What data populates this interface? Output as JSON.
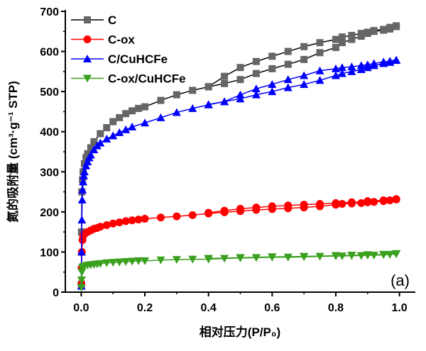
{
  "chart_data": {
    "type": "line",
    "xlabel": "相对压力(P/P₀)",
    "ylabel": "氮的吸附量 (cm³·g⁻¹ STP)",
    "xlim": [
      -0.05,
      1.05
    ],
    "ylim": [
      0,
      700
    ],
    "xticks": [
      "0.0",
      "0.2",
      "0.4",
      "0.6",
      "0.8",
      "1.0"
    ],
    "yticks": [
      "0",
      "100",
      "200",
      "300",
      "400",
      "500",
      "600",
      "700"
    ],
    "xtick_values": [
      0,
      0.2,
      0.4,
      0.6,
      0.8,
      1.0
    ],
    "ytick_values": [
      0,
      100,
      200,
      300,
      400,
      500,
      600,
      700
    ],
    "grid": false,
    "legend_position": "top-left",
    "annotation": "(a)",
    "series": [
      {
        "name": "C",
        "color": "#666666",
        "line_color": "#000000",
        "marker": "square",
        "adsorption": {
          "x": [
            0.0005,
            0.001,
            0.002,
            0.004,
            0.006,
            0.01,
            0.015,
            0.02,
            0.03,
            0.04,
            0.06,
            0.08,
            0.1,
            0.12,
            0.14,
            0.16,
            0.18,
            0.2,
            0.25,
            0.3,
            0.35,
            0.4,
            0.45,
            0.5,
            0.55,
            0.6,
            0.65,
            0.7,
            0.75,
            0.8,
            0.82,
            0.85,
            0.88,
            0.9,
            0.92,
            0.95,
            0.97,
            0.99
          ],
          "y": [
            20,
            150,
            250,
            280,
            300,
            320,
            335,
            345,
            360,
            375,
            395,
            410,
            425,
            435,
            445,
            452,
            458,
            462,
            478,
            492,
            503,
            512,
            520,
            530,
            545,
            557,
            568,
            580,
            597,
            610,
            622,
            630,
            638,
            645,
            650,
            653,
            656,
            662
          ]
        },
        "desorption": {
          "x": [
            0.99,
            0.97,
            0.95,
            0.92,
            0.9,
            0.88,
            0.85,
            0.82,
            0.8,
            0.75,
            0.7,
            0.65,
            0.6,
            0.55,
            0.5,
            0.45,
            0.4
          ],
          "y": [
            664,
            660,
            655,
            652,
            648,
            645,
            640,
            636,
            630,
            622,
            612,
            600,
            588,
            575,
            560,
            538,
            512
          ]
        }
      },
      {
        "name": "C-ox",
        "color": "#ff0000",
        "line_color": "#ff0000",
        "marker": "circle",
        "adsorption": {
          "x": [
            0.0005,
            0.001,
            0.002,
            0.004,
            0.006,
            0.01,
            0.02,
            0.03,
            0.04,
            0.05,
            0.06,
            0.08,
            0.1,
            0.12,
            0.14,
            0.16,
            0.18,
            0.2,
            0.25,
            0.3,
            0.35,
            0.4,
            0.45,
            0.5,
            0.55,
            0.6,
            0.65,
            0.7,
            0.75,
            0.8,
            0.82,
            0.85,
            0.88,
            0.9,
            0.92,
            0.95,
            0.97,
            0.99
          ],
          "y": [
            20,
            60,
            100,
            130,
            140,
            145,
            150,
            154,
            158,
            160,
            163,
            167,
            171,
            174,
            177,
            179,
            181,
            183,
            186,
            189,
            192,
            196,
            199,
            202,
            205,
            207,
            209,
            211,
            214,
            218,
            220,
            221,
            222,
            224,
            225,
            227,
            229,
            231
          ]
        },
        "desorption": {
          "x": [
            0.99,
            0.95,
            0.9,
            0.85,
            0.8,
            0.75,
            0.7,
            0.65,
            0.6,
            0.55,
            0.5,
            0.45,
            0.4
          ],
          "y": [
            232,
            229,
            227,
            224,
            222,
            220,
            218,
            216,
            214,
            211,
            208,
            203,
            198
          ]
        }
      },
      {
        "name": "C/CuHCFe",
        "color": "#0000ff",
        "line_color": "#0000ff",
        "marker": "triangle-up",
        "adsorption": {
          "x": [
            0.0005,
            0.001,
            0.002,
            0.003,
            0.004,
            0.006,
            0.008,
            0.01,
            0.015,
            0.02,
            0.025,
            0.03,
            0.04,
            0.05,
            0.06,
            0.08,
            0.1,
            0.12,
            0.14,
            0.16,
            0.2,
            0.25,
            0.3,
            0.35,
            0.4,
            0.45,
            0.5,
            0.55,
            0.6,
            0.65,
            0.7,
            0.75,
            0.8,
            0.82,
            0.85,
            0.88,
            0.9,
            0.92,
            0.95,
            0.97,
            0.99
          ],
          "y": [
            15,
            100,
            180,
            230,
            255,
            275,
            290,
            300,
            315,
            325,
            335,
            342,
            355,
            365,
            372,
            382,
            390,
            398,
            405,
            412,
            422,
            435,
            448,
            458,
            467,
            475,
            482,
            492,
            500,
            510,
            518,
            528,
            540,
            545,
            550,
            555,
            560,
            565,
            570,
            573,
            578
          ]
        },
        "desorption": {
          "x": [
            0.99,
            0.97,
            0.95,
            0.92,
            0.9,
            0.88,
            0.85,
            0.82,
            0.8,
            0.75,
            0.7,
            0.65,
            0.6,
            0.55,
            0.5,
            0.45,
            0.4
          ],
          "y": [
            579,
            576,
            574,
            570,
            567,
            565,
            562,
            560,
            557,
            552,
            540,
            530,
            518,
            507,
            492,
            475,
            468
          ]
        }
      },
      {
        "name": "C-ox/CuHCFe",
        "color": "#3aa01e",
        "line_color": "#3aa01e",
        "marker": "triangle-down",
        "adsorption": {
          "x": [
            0.0005,
            0.001,
            0.002,
            0.004,
            0.006,
            0.01,
            0.02,
            0.03,
            0.04,
            0.05,
            0.06,
            0.08,
            0.1,
            0.12,
            0.14,
            0.16,
            0.18,
            0.2,
            0.25,
            0.3,
            0.35,
            0.4,
            0.45,
            0.5,
            0.55,
            0.6,
            0.65,
            0.7,
            0.75,
            0.8,
            0.82,
            0.85,
            0.88,
            0.9,
            0.92,
            0.95,
            0.97,
            0.99
          ],
          "y": [
            12,
            30,
            50,
            60,
            63,
            65,
            67,
            68,
            69,
            70,
            71,
            73,
            74,
            75,
            76,
            77,
            78,
            78,
            80,
            81,
            82,
            82,
            84,
            85,
            86,
            87,
            87,
            88,
            89,
            90,
            90,
            91,
            91,
            92,
            92,
            93,
            94,
            95
          ]
        },
        "desorption": {
          "x": [
            0.99,
            0.95,
            0.9,
            0.85,
            0.8,
            0.7,
            0.6,
            0.5,
            0.4
          ],
          "y": [
            96,
            94,
            93,
            92,
            91,
            89,
            88,
            86,
            84
          ]
        }
      }
    ]
  }
}
